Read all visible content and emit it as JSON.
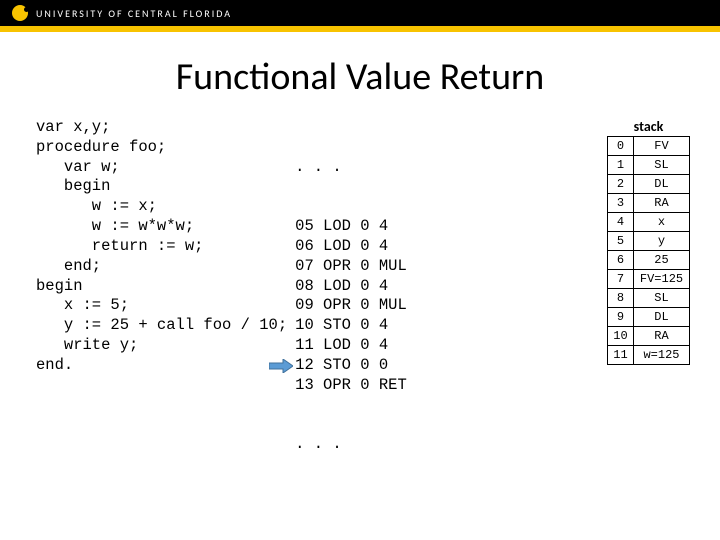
{
  "header": {
    "university": "UNIVERSITY OF CENTRAL FLORIDA"
  },
  "title": "Functional Value Return",
  "source_code": "var x,y;\nprocedure foo;\n   var w;\n   begin\n      w := x;\n      w := w*w*w;\n      return := w;\n   end;\nbegin\n   x := 5;\n   y := 25 + call foo / 10;\n   write y;\nend.",
  "instructions": {
    "lead": ". . .",
    "rows": [
      "05 LOD 0 4",
      "06 LOD 0 4",
      "07 OPR 0 MUL",
      "08 LOD 0 4",
      "09 OPR 0 MUL",
      "10 STO 0 4",
      "11 LOD 0 4",
      "12 STO 0 0",
      "13 OPR 0 RET"
    ],
    "tail": ". . ."
  },
  "arrow": {
    "target_row_index": 7,
    "fill": "#5b9bd5",
    "stroke": "#41719c"
  },
  "stack": {
    "title": "stack",
    "rows": [
      {
        "idx": "0",
        "val": "FV"
      },
      {
        "idx": "1",
        "val": "SL"
      },
      {
        "idx": "2",
        "val": "DL"
      },
      {
        "idx": "3",
        "val": "RA"
      },
      {
        "idx": "4",
        "val": "x"
      },
      {
        "idx": "5",
        "val": "y"
      },
      {
        "idx": "6",
        "val": "25"
      },
      {
        "idx": "7",
        "val": "FV=125"
      },
      {
        "idx": "8",
        "val": "SL"
      },
      {
        "idx": "9",
        "val": "DL"
      },
      {
        "idx": "10",
        "val": "RA"
      },
      {
        "idx": "11",
        "val": "w=125"
      }
    ]
  }
}
